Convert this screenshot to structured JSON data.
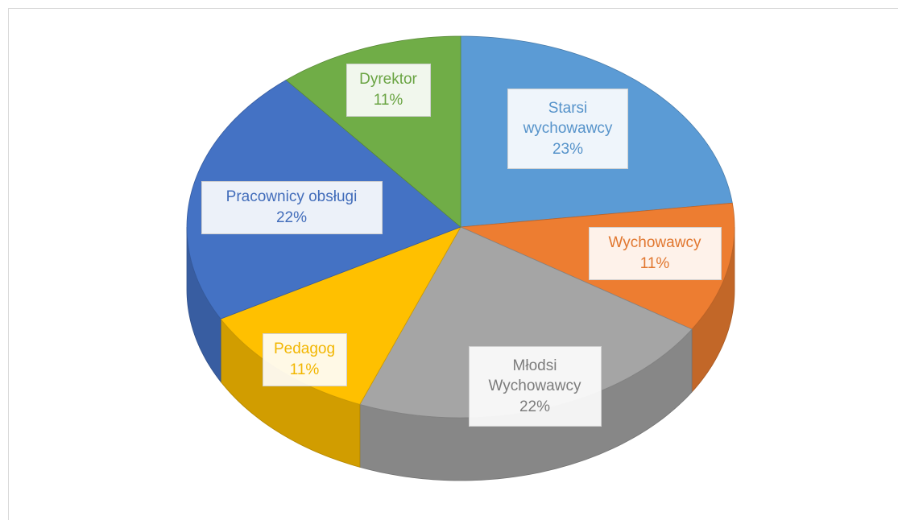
{
  "chart_data": {
    "type": "pie",
    "categories": [
      "Starsi wychowawcy",
      "Wychowawcy",
      "Młodsi Wychowawcy",
      "Pedagog",
      "Pracownicy obsługi",
      "Dyrektor"
    ],
    "values": [
      23,
      11,
      22,
      11,
      22,
      11
    ],
    "value_labels": [
      "23%",
      "11%",
      "22%",
      "11%",
      "22%",
      "11%"
    ],
    "colors": [
      "#5b9bd5",
      "#ed7d31",
      "#a5a5a5",
      "#ffc000",
      "#4472c4",
      "#70ad47"
    ]
  }
}
